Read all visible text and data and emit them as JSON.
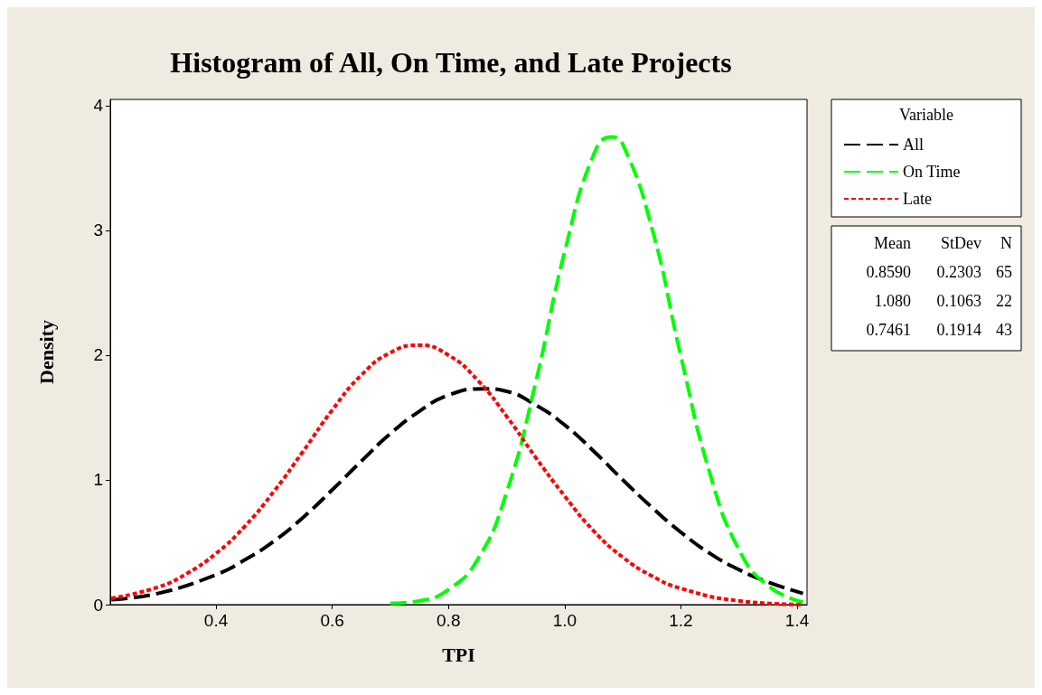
{
  "chart_data": {
    "type": "line",
    "title": "Histogram of All, On Time, and Late Projects",
    "xlabel": "TPI",
    "ylabel": "Density",
    "legend_title": "Variable",
    "legend": "top right",
    "grid": false,
    "marker": "none",
    "xlim": [
      0.218,
      1.417
    ],
    "xticks": [
      0.4,
      0.6,
      0.8,
      {
        "value": 1,
        "label": "1.0"
      },
      1.2,
      1.4
    ],
    "ylim": [
      0,
      4.05
    ],
    "yticks": [
      0,
      1,
      2,
      3,
      4
    ],
    "series": [
      {
        "name": "All",
        "color": "#000000",
        "line_style": "dashed",
        "x": [
          0.22,
          0.3,
          0.4,
          0.45,
          0.5,
          0.55,
          0.6,
          0.65,
          0.7,
          0.75,
          0.8,
          0.86,
          0.9,
          0.95,
          1.0,
          1.05,
          1.1,
          1.15,
          1.2,
          1.25,
          1.3,
          1.35,
          1.41
        ],
        "values": [
          0.04,
          0.09,
          0.24,
          0.36,
          0.51,
          0.7,
          0.92,
          1.15,
          1.37,
          1.55,
          1.68,
          1.73,
          1.71,
          1.6,
          1.44,
          1.23,
          1.0,
          0.78,
          0.58,
          0.41,
          0.28,
          0.18,
          0.09
        ]
      },
      {
        "name": "On Time",
        "color": "#00ff00",
        "line_style": "dashed",
        "x": [
          0.7,
          0.75,
          0.8,
          0.85,
          0.9,
          0.95,
          1.0,
          1.05,
          1.08,
          1.1,
          1.15,
          1.2,
          1.25,
          1.3,
          1.35,
          1.41
        ],
        "values": [
          0.01,
          0.03,
          0.12,
          0.36,
          0.9,
          1.78,
          2.83,
          3.61,
          3.75,
          3.69,
          3.02,
          1.99,
          1.05,
          0.44,
          0.15,
          0.02
        ]
      },
      {
        "name": "Late",
        "color": "#ff0000",
        "line_style": "dotted",
        "x": [
          0.22,
          0.3,
          0.35,
          0.4,
          0.45,
          0.5,
          0.55,
          0.6,
          0.65,
          0.7,
          0.75,
          0.8,
          0.85,
          0.9,
          0.95,
          1.0,
          1.05,
          1.1,
          1.15,
          1.2,
          1.3,
          1.41
        ],
        "values": [
          0.05,
          0.14,
          0.25,
          0.41,
          0.63,
          0.91,
          1.23,
          1.56,
          1.84,
          2.02,
          2.08,
          2.0,
          1.8,
          1.51,
          1.18,
          0.87,
          0.59,
          0.38,
          0.23,
          0.13,
          0.03,
          0.0
        ]
      }
    ],
    "annotations": [
      "Mean",
      "StDev",
      "N",
      "0.8590",
      "0.2303",
      "65",
      "1.080",
      "0.1063",
      "22",
      "0.7461",
      "0.1914",
      "43"
    ]
  }
}
